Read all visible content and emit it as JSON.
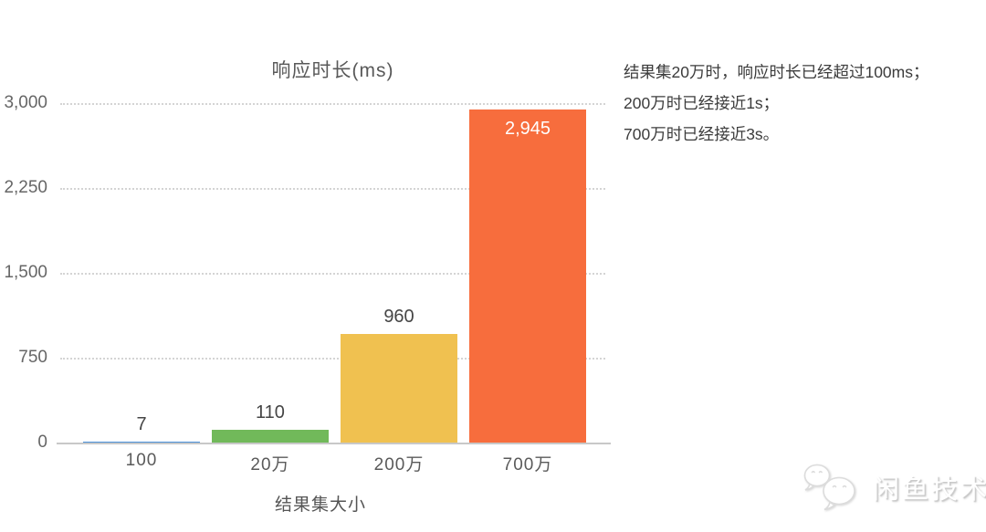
{
  "chart_data": {
    "type": "bar",
    "title": "响应时长(ms)",
    "xlabel": "结果集大小",
    "ylabel": "",
    "categories": [
      "100",
      "20万",
      "200万",
      "700万"
    ],
    "values": [
      7,
      110,
      960,
      2945
    ],
    "value_labels": [
      "7",
      "110",
      "960",
      "2,945"
    ],
    "bar_colors": [
      "#4a90d9",
      "#71b95a",
      "#f0c150",
      "#f76d3d"
    ],
    "label_positions": [
      "above",
      "above",
      "above",
      "inside"
    ],
    "ylim": [
      0,
      3000
    ],
    "yticks": [
      0,
      750,
      1500,
      2250,
      3000
    ],
    "ytick_labels": [
      "0",
      "750",
      "1,500",
      "2,250",
      "3,000"
    ],
    "grid": "horizontal-dotted",
    "legend": "none"
  },
  "annotation": {
    "line1": "结果集20万时，响应时长已经超过100ms；",
    "line2": "200万时已经接近1s；",
    "line3": "700万时已经接近3s。"
  },
  "watermark": {
    "text": "闲鱼技术",
    "icon": "chat-bubbles-icon"
  },
  "colors": {
    "background": "#ffffff",
    "grid": "#d4d4d4",
    "axis_line": "#c8c8c8",
    "tick_text": "#666666",
    "title_text": "#595959",
    "value_text": "#454545",
    "value_text_inside": "#ffffff",
    "annotation_text": "#3c3c3c"
  }
}
